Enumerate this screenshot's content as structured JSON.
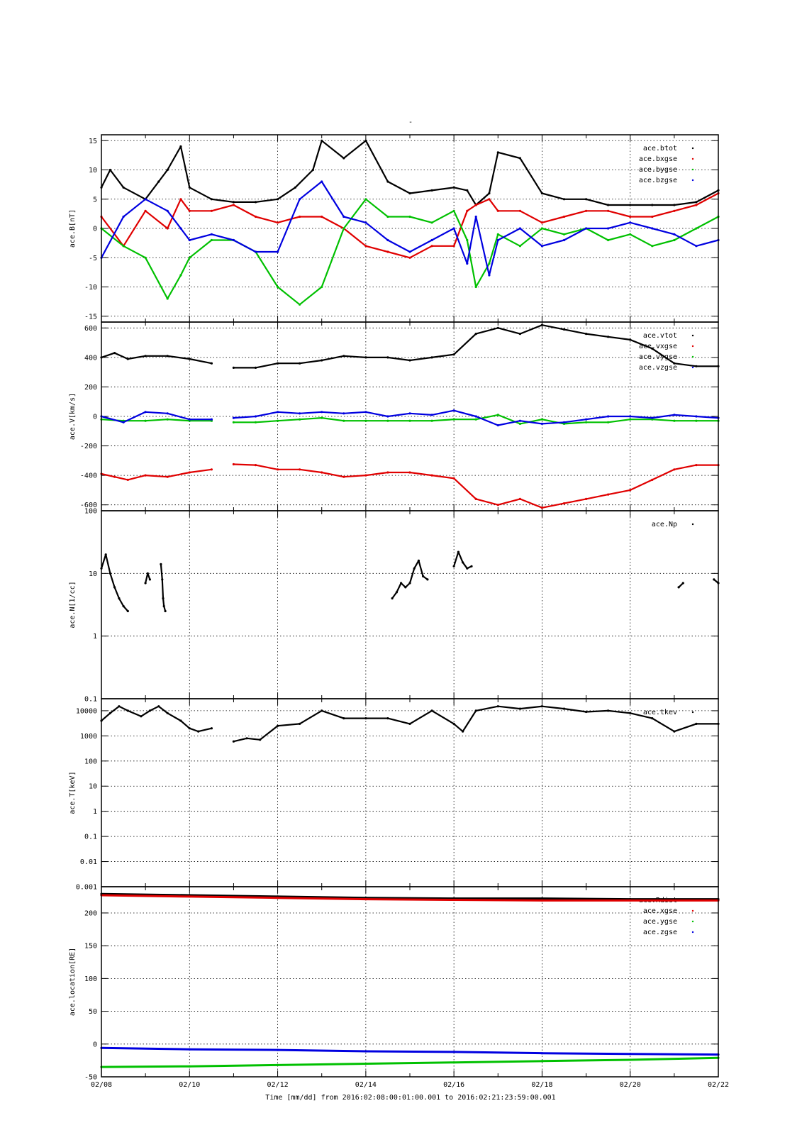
{
  "title": "-",
  "xaxis": {
    "caption": "Time [mm/dd]  from 2016:02:08:00:01:00.001  to  2016:02:21:23:59:00.001",
    "range": [
      "02/08",
      "02/22"
    ],
    "tick_labels": [
      "02/08",
      "02/10",
      "02/12",
      "02/14",
      "02/16",
      "02/18",
      "02/20",
      "02/22"
    ]
  },
  "colors": {
    "black": "#000000",
    "red": "#e00000",
    "green": "#00c000",
    "blue": "#0000e0"
  },
  "chart_data": [
    {
      "type": "scatter",
      "ylabel": "ace.B[nT]",
      "ylim": [
        -16,
        16
      ],
      "scale": "linear",
      "yticks": [
        -15,
        -10,
        -5,
        0,
        5,
        10,
        15
      ],
      "ytick_labels": [
        "-15",
        "-10",
        "-5",
        "0",
        "5",
        "10",
        "15"
      ],
      "legend": "top-right",
      "grid": true,
      "series": [
        {
          "name": "ace.btot",
          "color": "black",
          "x": [
            0,
            0.2,
            0.5,
            1,
            1.3,
            1.5,
            1.8,
            2,
            2.5,
            3,
            3.5,
            4,
            4.4,
            4.8,
            5,
            5.5,
            6,
            6.5,
            7,
            7.5,
            8,
            8.3,
            8.5,
            8.8,
            9,
            9.5,
            10,
            10.5,
            11,
            11.5,
            12,
            12.5,
            13,
            13.5,
            14
          ],
          "y": [
            7,
            10,
            7,
            5,
            8,
            10,
            14,
            7,
            5,
            4.5,
            4.5,
            5,
            7,
            10,
            15,
            12,
            15,
            8,
            6,
            6.5,
            7,
            6.5,
            4,
            6,
            13,
            12,
            6,
            5,
            5,
            4,
            4,
            4,
            4,
            4.5,
            6.5
          ]
        },
        {
          "name": "ace.bxgse",
          "color": "red",
          "x": [
            0,
            0.5,
            1,
            1.5,
            1.8,
            2,
            2.5,
            3,
            3.5,
            4,
            4.5,
            5,
            5.5,
            6,
            6.5,
            7,
            7.5,
            8,
            8.3,
            8.5,
            8.8,
            9,
            9.5,
            10,
            10.5,
            11,
            11.5,
            12,
            12.5,
            13,
            13.5,
            14
          ],
          "y": [
            2,
            -3,
            3,
            0,
            5,
            3,
            3,
            4,
            2,
            1,
            2,
            2,
            0,
            -3,
            -4,
            -5,
            -3,
            -3,
            3,
            4,
            5,
            3,
            3,
            1,
            2,
            3,
            3,
            2,
            2,
            3,
            4,
            6
          ]
        },
        {
          "name": "ace.bygse",
          "color": "green",
          "x": [
            0,
            0.5,
            1,
            1.5,
            1.8,
            2,
            2.5,
            3,
            3.5,
            4,
            4.5,
            5,
            5.5,
            6,
            6.5,
            7,
            7.5,
            8,
            8.3,
            8.5,
            8.8,
            9,
            9.5,
            10,
            10.5,
            11,
            11.5,
            12,
            12.5,
            13,
            13.5,
            14
          ],
          "y": [
            0,
            -3,
            -5,
            -12,
            -8,
            -5,
            -2,
            -2,
            -4,
            -10,
            -13,
            -10,
            0,
            5,
            2,
            2,
            1,
            3,
            -2,
            -10,
            -6,
            -1,
            -3,
            0,
            -1,
            0,
            -2,
            -1,
            -3,
            -2,
            0,
            2
          ]
        },
        {
          "name": "ace.bzgse",
          "color": "blue",
          "x": [
            0,
            0.5,
            1,
            1.5,
            1.8,
            2,
            2.5,
            3,
            3.5,
            4,
            4.5,
            5,
            5.5,
            6,
            6.5,
            7,
            7.5,
            8,
            8.3,
            8.5,
            8.8,
            9,
            9.5,
            10,
            10.5,
            11,
            11.5,
            12,
            12.5,
            13,
            13.5,
            14
          ],
          "y": [
            -5,
            2,
            5,
            3,
            0,
            -2,
            -1,
            -2,
            -4,
            -4,
            5,
            8,
            2,
            1,
            -2,
            -4,
            -2,
            0,
            -6,
            2,
            -8,
            -2,
            0,
            -3,
            -2,
            0,
            0,
            1,
            0,
            -1,
            -3,
            -2
          ]
        }
      ]
    },
    {
      "type": "scatter",
      "ylabel": "ace.V[km/s]",
      "ylim": [
        -640,
        640
      ],
      "scale": "linear",
      "yticks": [
        -600,
        -400,
        -200,
        0,
        200,
        400,
        600
      ],
      "ytick_labels": [
        "-600",
        "-400",
        "-200",
        "0",
        "200",
        "400",
        "600"
      ],
      "legend": "top-right",
      "grid": true,
      "series": [
        {
          "name": "ace.vtot",
          "color": "black",
          "x": [
            0,
            0.3,
            0.6,
            1,
            1.5,
            2,
            2.5,
            2.6,
            3,
            3.5,
            4,
            4.5,
            5,
            5.5,
            6,
            6.5,
            7,
            7.5,
            8,
            8.5,
            9,
            9.5,
            10,
            10.5,
            11,
            11.5,
            12,
            12.5,
            13,
            13.5,
            14
          ],
          "y": [
            400,
            430,
            390,
            410,
            410,
            390,
            360,
            null,
            330,
            330,
            360,
            360,
            380,
            410,
            400,
            400,
            380,
            400,
            420,
            560,
            600,
            560,
            620,
            590,
            560,
            540,
            520,
            460,
            360,
            340,
            340
          ]
        },
        {
          "name": "ace.vxgse",
          "color": "red",
          "x": [
            0,
            0.3,
            0.6,
            1,
            1.5,
            2,
            2.5,
            2.6,
            3,
            3.5,
            4,
            4.5,
            5,
            5.5,
            6,
            6.5,
            7,
            7.5,
            8,
            8.5,
            9,
            9.5,
            10,
            10.5,
            11,
            11.5,
            12,
            12.5,
            13,
            13.5,
            14
          ],
          "y": [
            -390,
            -410,
            -430,
            -400,
            -410,
            -380,
            -360,
            null,
            -325,
            -330,
            -360,
            -360,
            -380,
            -410,
            -400,
            -380,
            -380,
            -400,
            -420,
            -560,
            -600,
            -560,
            -620,
            -590,
            -560,
            -530,
            -500,
            -430,
            -360,
            -330,
            -330
          ]
        },
        {
          "name": "ace.vygse",
          "color": "green",
          "x": [
            0,
            0.5,
            1,
            1.5,
            2,
            2.5,
            2.6,
            3,
            3.5,
            4,
            4.5,
            5,
            5.5,
            6,
            6.5,
            7,
            7.5,
            8,
            8.5,
            9,
            9.5,
            10,
            10.5,
            11,
            11.5,
            12,
            12.5,
            13,
            13.5,
            14
          ],
          "y": [
            -20,
            -30,
            -30,
            -20,
            -30,
            -30,
            null,
            -40,
            -40,
            -30,
            -20,
            -10,
            -30,
            -30,
            -30,
            -30,
            -30,
            -20,
            -20,
            10,
            -50,
            -20,
            -50,
            -40,
            -40,
            -20,
            -20,
            -30,
            -30,
            -30
          ]
        },
        {
          "name": "ace.vzgse",
          "color": "blue",
          "x": [
            0,
            0.5,
            1,
            1.5,
            2,
            2.5,
            2.6,
            3,
            3.5,
            4,
            4.5,
            5,
            5.5,
            6,
            6.5,
            7,
            7.5,
            8,
            8.5,
            9,
            9.5,
            10,
            10.5,
            11,
            11.5,
            12,
            12.5,
            13,
            13.5,
            14
          ],
          "y": [
            0,
            -40,
            30,
            20,
            -20,
            -20,
            null,
            -10,
            0,
            30,
            20,
            30,
            20,
            30,
            0,
            20,
            10,
            40,
            0,
            -60,
            -30,
            -50,
            -40,
            -20,
            0,
            0,
            -10,
            10,
            0,
            -10
          ]
        }
      ]
    },
    {
      "type": "scatter",
      "ylabel": "ace.N[1/cc]",
      "ylim": [
        0.1,
        100
      ],
      "scale": "log",
      "yticks": [
        0.1,
        1,
        10,
        100
      ],
      "ytick_labels": [
        "0.1",
        "1",
        "10",
        "100"
      ],
      "legend": "top-right",
      "grid": true,
      "series": [
        {
          "name": "ace.Np",
          "color": "black",
          "x": [
            0,
            0.1,
            0.2,
            0.3,
            0.4,
            0.5,
            0.6,
            null,
            1,
            1.05,
            1.1,
            null,
            1.35,
            1.38,
            1.4,
            1.42,
            1.45,
            null,
            6.6,
            6.7,
            6.8,
            6.9,
            7,
            7.1,
            7.2,
            7.3,
            7.4,
            null,
            8,
            8.1,
            8.2,
            8.3,
            8.4,
            null,
            13.1,
            13.2,
            null,
            13.9,
            14
          ],
          "y": [
            12,
            20,
            10,
            6,
            4,
            3,
            2.5,
            null,
            7,
            10,
            8,
            null,
            14,
            8,
            4,
            3,
            2.5,
            null,
            4,
            5,
            7,
            6,
            7,
            12,
            16,
            9,
            8,
            null,
            13,
            22,
            15,
            12,
            13,
            null,
            6,
            7,
            null,
            8,
            7
          ]
        }
      ]
    },
    {
      "type": "scatter",
      "ylabel": "ace.T[keV]",
      "ylim": [
        0.001,
        30000
      ],
      "scale": "log",
      "yticks": [
        0.001,
        0.01,
        0.1,
        1,
        10,
        100,
        1000,
        10000
      ],
      "ytick_labels": [
        "0.001",
        "0.01",
        "0.1",
        "1",
        "10",
        "100",
        "1000",
        "10000"
      ],
      "legend": "top-right",
      "grid": true,
      "series": [
        {
          "name": "ace.tkev",
          "color": "black",
          "x": [
            0,
            0.2,
            0.4,
            0.6,
            0.9,
            1.1,
            1.3,
            1.5,
            1.8,
            2,
            2.2,
            2.5,
            null,
            3,
            3.3,
            3.6,
            4,
            4.5,
            5,
            5.5,
            6,
            6.5,
            7,
            7.5,
            8,
            8.2,
            8.5,
            9,
            9.5,
            10,
            10.5,
            11,
            11.5,
            12,
            12.5,
            13,
            13.5,
            14
          ],
          "y": [
            4000,
            8000,
            15000,
            10000,
            6000,
            10000,
            15000,
            8000,
            4000,
            2000,
            1500,
            2000,
            null,
            600,
            800,
            700,
            2500,
            3000,
            10000,
            5000,
            5000,
            5000,
            3000,
            10000,
            3000,
            1500,
            10000,
            15000,
            12000,
            15000,
            12000,
            9000,
            10000,
            8000,
            5000,
            1500,
            3000,
            3000
          ]
        }
      ]
    },
    {
      "type": "line",
      "ylabel": "ace.location[RE]",
      "ylim": [
        -50,
        240
      ],
      "scale": "linear",
      "yticks": [
        -50,
        0,
        50,
        100,
        150,
        200
      ],
      "ytick_labels": [
        "-50",
        "0",
        "50",
        "100",
        "150",
        "200"
      ],
      "legend": "top-right",
      "grid": true,
      "series": [
        {
          "name": "ace.Rdist",
          "color": "black",
          "x": [
            0,
            2,
            4,
            6,
            8,
            10,
            12,
            14
          ],
          "y": [
            229,
            227,
            225,
            223,
            222,
            222,
            221,
            221
          ]
        },
        {
          "name": "ace.xgse",
          "color": "red",
          "x": [
            0,
            2,
            4,
            6,
            8,
            10,
            12,
            14
          ],
          "y": [
            227,
            225,
            223,
            221,
            220,
            219,
            219,
            219
          ]
        },
        {
          "name": "ace.ygse",
          "color": "green",
          "x": [
            0,
            2,
            4,
            6,
            8,
            10,
            12,
            14
          ],
          "y": [
            -35,
            -34,
            -32,
            -30,
            -28,
            -26,
            -24,
            -21
          ]
        },
        {
          "name": "ace.zgse",
          "color": "blue",
          "x": [
            0,
            2,
            4,
            6,
            8,
            10,
            12,
            14
          ],
          "y": [
            -6,
            -8,
            -9,
            -11,
            -12,
            -14,
            -15,
            -16
          ]
        }
      ]
    }
  ]
}
